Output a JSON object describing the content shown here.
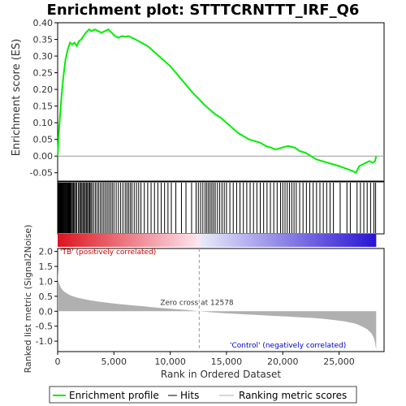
{
  "chart_data": {
    "type": "line",
    "title": "Enrichment plot: STTTCRNTTT_IRF_Q6",
    "es_panel": {
      "ylabel": "Enrichment score (ES)",
      "ylim": [
        -0.075,
        0.4
      ],
      "yticks": [
        -0.05,
        0.0,
        0.05,
        0.1,
        0.15,
        0.2,
        0.25,
        0.3,
        0.35,
        0.4
      ],
      "ytick_labels": [
        "-0.05",
        "0.00",
        "0.05",
        "0.10",
        "0.15",
        "0.20",
        "0.25",
        "0.30",
        "0.35",
        "0.40"
      ],
      "line_color": "#00ee00",
      "series": [
        {
          "name": "Enrichment profile",
          "x": [
            0,
            120,
            250,
            400,
            550,
            700,
            900,
            1100,
            1300,
            1500,
            1700,
            1900,
            2100,
            2300,
            2500,
            2800,
            3000,
            3300,
            3600,
            3900,
            4200,
            4500,
            4800,
            5100,
            5400,
            5700,
            6000,
            6300,
            6600,
            6900,
            7200,
            7600,
            8000,
            8500,
            9000,
            9500,
            10000,
            10500,
            11000,
            11500,
            12000,
            12578,
            13000,
            13500,
            14000,
            14500,
            15000,
            15500,
            16000,
            16500,
            17000,
            17500,
            18000,
            18500,
            19000,
            19300,
            19600,
            19900,
            20200,
            20500,
            20800,
            21100,
            21500,
            22000,
            22500,
            23000,
            23500,
            24000,
            24500,
            25000,
            25400,
            25800,
            26200,
            26500,
            26800,
            27100,
            27400,
            27700,
            28000,
            28200,
            28300
          ],
          "values": [
            0.0,
            0.08,
            0.14,
            0.2,
            0.25,
            0.29,
            0.32,
            0.34,
            0.335,
            0.34,
            0.33,
            0.345,
            0.35,
            0.36,
            0.37,
            0.38,
            0.375,
            0.38,
            0.375,
            0.37,
            0.375,
            0.38,
            0.37,
            0.36,
            0.355,
            0.36,
            0.358,
            0.36,
            0.355,
            0.35,
            0.345,
            0.337,
            0.33,
            0.315,
            0.3,
            0.285,
            0.27,
            0.25,
            0.23,
            0.21,
            0.19,
            0.17,
            0.155,
            0.14,
            0.125,
            0.115,
            0.1,
            0.085,
            0.07,
            0.06,
            0.05,
            0.045,
            0.04,
            0.03,
            0.025,
            0.02,
            0.022,
            0.025,
            0.028,
            0.03,
            0.027,
            0.025,
            0.015,
            0.01,
            0.0,
            -0.01,
            -0.015,
            -0.02,
            -0.025,
            -0.03,
            -0.035,
            -0.04,
            -0.045,
            -0.05,
            -0.03,
            -0.025,
            -0.02,
            -0.015,
            -0.02,
            -0.015,
            0.0
          ]
        }
      ]
    },
    "hits_panel": {
      "hit_color": "#000000",
      "hit_ranks": [
        5,
        40,
        80,
        120,
        160,
        200,
        240,
        290,
        340,
        390,
        440,
        500,
        560,
        620,
        680,
        740,
        800,
        870,
        940,
        1010,
        1080,
        1150,
        1230,
        1320,
        1410,
        1500,
        1600,
        1700,
        1850,
        1950,
        2050,
        2150,
        2250,
        2350,
        2450,
        2550,
        2650,
        2750,
        2850,
        2950,
        3050,
        3200,
        3350,
        3500,
        3650,
        3800,
        3950,
        4100,
        4250,
        4400,
        4550,
        4700,
        4850,
        5000,
        5200,
        5400,
        5600,
        5800,
        6000,
        6150,
        6300,
        6450,
        6600,
        6800,
        7000,
        7200,
        7400,
        7700,
        8000,
        8300,
        8600,
        8900,
        9200,
        9500,
        9800,
        10100,
        10500,
        11000,
        11400,
        11900,
        12300,
        12500,
        12700,
        12900,
        13100,
        13250,
        13400,
        13550,
        13700,
        13850,
        14000,
        14200,
        14400,
        14600,
        14800,
        15000,
        15300,
        15600,
        15900,
        16200,
        16500,
        16800,
        17100,
        17400,
        17700,
        18000,
        18300,
        18600,
        18900,
        19200,
        19500,
        19800,
        20000,
        20200,
        20400,
        20600,
        20800,
        21000,
        21200,
        21500,
        21800,
        22100,
        22400,
        22700,
        23000,
        23300,
        23600,
        23900,
        24200,
        24500,
        25100,
        25700,
        26000,
        26600,
        26900,
        27200,
        27500,
        27800,
        28100,
        28250
      ]
    },
    "rank_panel": {
      "ylabel": "Ranked list metric (Signal2Noise)",
      "xlabel": "Rank in Ordered Dataset",
      "ylim": [
        -1.35,
        2.1
      ],
      "yticks": [
        -1.0,
        -0.5,
        0.0,
        0.5,
        1.0,
        1.5,
        2.0
      ],
      "ytick_labels": [
        "-1.0",
        "-0.5",
        "0.0",
        "0.5",
        "1.0",
        "1.5",
        "2.0"
      ],
      "xlim": [
        0,
        29000
      ],
      "xticks": [
        0,
        5000,
        10000,
        15000,
        20000,
        25000
      ],
      "xtick_labels": [
        "0",
        "5,000",
        "10,000",
        "15,000",
        "20,000",
        "25,000"
      ],
      "fill_color": "#b0b0b0",
      "x": [
        0,
        50,
        150,
        300,
        500,
        800,
        1200,
        1800,
        2500,
        3500,
        4500,
        5500,
        6500,
        7500,
        8500,
        9500,
        10500,
        11500,
        12578,
        13500,
        14500,
        15500,
        16500,
        17500,
        18500,
        19500,
        20500,
        21500,
        22500,
        23500,
        24500,
        25500,
        26500,
        27000,
        27500,
        27900,
        28100,
        28200,
        28300
      ],
      "values": [
        1.4,
        1.05,
        0.9,
        0.78,
        0.68,
        0.6,
        0.52,
        0.45,
        0.39,
        0.33,
        0.28,
        0.24,
        0.2,
        0.17,
        0.13,
        0.1,
        0.07,
        0.04,
        0.0,
        -0.03,
        -0.06,
        -0.08,
        -0.1,
        -0.12,
        -0.14,
        -0.16,
        -0.18,
        -0.2,
        -0.22,
        -0.25,
        -0.29,
        -0.34,
        -0.42,
        -0.5,
        -0.6,
        -0.75,
        -0.9,
        -1.05,
        -1.3
      ],
      "zero_cross_label": "Zero cross at 12578",
      "zero_cross_rank": 12578,
      "positive_label": "'TB' (positively correlated)",
      "negative_label": "'Control' (negatively correlated)",
      "positive_color": "#cc0000",
      "negative_color": "#0000cc"
    },
    "legend": {
      "placement": "bottom",
      "entries": [
        {
          "label": "Enrichment profile",
          "color": "#00ee00"
        },
        {
          "label": "Hits",
          "color": "#000000"
        },
        {
          "label": "Ranking metric scores",
          "color": "#b0b0b0"
        }
      ]
    }
  }
}
